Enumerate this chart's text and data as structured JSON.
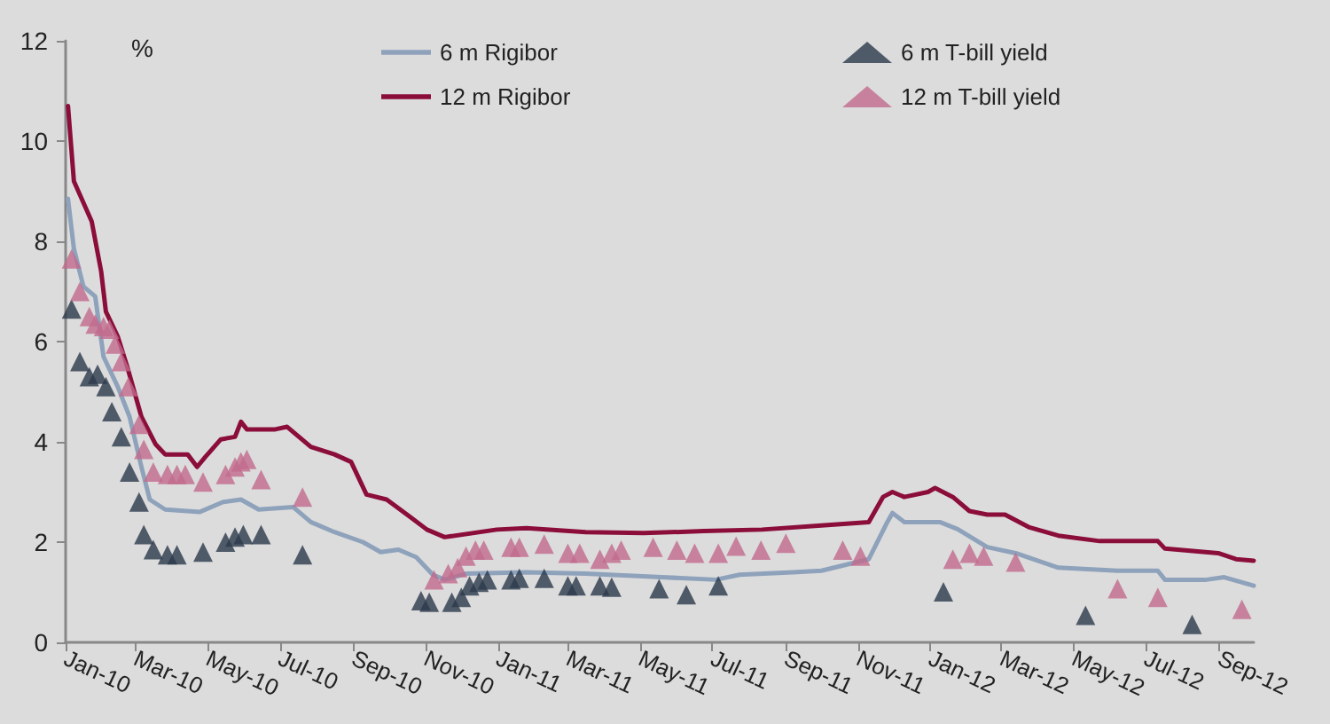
{
  "chart_data": {
    "type": "line",
    "ylabel": "%",
    "ylim": [
      0,
      12
    ],
    "yticks": [
      0,
      2,
      4,
      6,
      8,
      10,
      12
    ],
    "xlim": [
      "2010-01-01",
      "2012-09-30"
    ],
    "xticks": [
      {
        "value": "2010-01-01",
        "label": "Jan-10"
      },
      {
        "value": "2010-03-01",
        "label": "Mar-10"
      },
      {
        "value": "2010-05-01",
        "label": "May-10"
      },
      {
        "value": "2010-07-01",
        "label": "Jul-10"
      },
      {
        "value": "2010-09-01",
        "label": "Sep-10"
      },
      {
        "value": "2010-11-01",
        "label": "Nov-10"
      },
      {
        "value": "2011-01-01",
        "label": "Jan-11"
      },
      {
        "value": "2011-03-01",
        "label": "Mar-11"
      },
      {
        "value": "2011-05-01",
        "label": "May-11"
      },
      {
        "value": "2011-07-01",
        "label": "Jul-11"
      },
      {
        "value": "2011-09-01",
        "label": "Sep-11"
      },
      {
        "value": "2011-11-01",
        "label": "Nov-11"
      },
      {
        "value": "2012-01-01",
        "label": "Jan-12"
      },
      {
        "value": "2012-03-01",
        "label": "Mar-12"
      },
      {
        "value": "2012-05-01",
        "label": "May-12"
      },
      {
        "value": "2012-07-01",
        "label": "Jul-12"
      },
      {
        "value": "2012-09-01",
        "label": "Sep-12"
      }
    ],
    "grid": false,
    "legend": "top",
    "series": [
      {
        "name": "6 m Rigibor",
        "marker": "none",
        "color": "#8ea2bb",
        "x": [
          "2010-01-03",
          "2010-01-08",
          "2010-01-16",
          "2010-01-26",
          "2010-02-02",
          "2010-02-14",
          "2010-02-24",
          "2010-03-06",
          "2010-03-13",
          "2010-03-26",
          "2010-04-24",
          "2010-05-14",
          "2010-05-29",
          "2010-06-13",
          "2010-07-12",
          "2010-07-27",
          "2010-08-16",
          "2010-09-09",
          "2010-09-24",
          "2010-10-09",
          "2010-10-24",
          "2010-11-07",
          "2010-11-17",
          "2010-12-05",
          "2011-01-25",
          "2011-03-16",
          "2011-05-19",
          "2011-07-04",
          "2011-07-24",
          "2011-09-07",
          "2011-10-01",
          "2011-11-10",
          "2011-11-25",
          "2011-11-30",
          "2011-12-10",
          "2012-01-09",
          "2012-01-24",
          "2012-02-18",
          "2012-03-13",
          "2012-04-18",
          "2012-06-07",
          "2012-07-11",
          "2012-07-17",
          "2012-08-21",
          "2012-09-05",
          "2012-09-30"
        ],
        "values": [
          8.85,
          7.85,
          7.1,
          6.9,
          5.7,
          5.1,
          4.5,
          3.5,
          2.85,
          2.65,
          2.6,
          2.8,
          2.85,
          2.65,
          2.7,
          2.4,
          2.2,
          2.0,
          1.8,
          1.85,
          1.7,
          1.35,
          1.25,
          1.37,
          1.4,
          1.37,
          1.3,
          1.25,
          1.35,
          1.4,
          1.43,
          1.66,
          2.37,
          2.58,
          2.4,
          2.4,
          2.26,
          1.9,
          1.78,
          1.49,
          1.43,
          1.43,
          1.25,
          1.25,
          1.3,
          1.13
        ]
      },
      {
        "name": "12 m Rigibor",
        "marker": "none",
        "color": "#8b0d3a",
        "x": [
          "2010-01-03",
          "2010-01-08",
          "2010-01-23",
          "2010-01-31",
          "2010-02-04",
          "2010-02-14",
          "2010-02-22",
          "2010-03-06",
          "2010-03-18",
          "2010-03-26",
          "2010-04-14",
          "2010-04-22",
          "2010-04-29",
          "2010-05-12",
          "2010-05-24",
          "2010-05-29",
          "2010-06-03",
          "2010-06-27",
          "2010-07-07",
          "2010-07-27",
          "2010-08-16",
          "2010-08-30",
          "2010-09-12",
          "2010-09-29",
          "2010-10-19",
          "2010-11-02",
          "2010-11-17",
          "2010-12-31",
          "2011-01-25",
          "2011-03-16",
          "2011-05-04",
          "2011-06-24",
          "2011-08-12",
          "2011-10-01",
          "2011-11-10",
          "2011-11-22",
          "2011-11-30",
          "2011-12-10",
          "2011-12-30",
          "2012-01-05",
          "2012-01-20",
          "2012-02-03",
          "2012-02-18",
          "2012-03-04",
          "2012-03-24",
          "2012-04-18",
          "2012-05-23",
          "2012-07-11",
          "2012-07-17",
          "2012-08-31",
          "2012-09-15",
          "2012-09-30"
        ],
        "values": [
          10.7,
          9.2,
          8.4,
          7.4,
          6.6,
          6.1,
          5.5,
          4.5,
          3.95,
          3.75,
          3.75,
          3.5,
          3.7,
          4.05,
          4.1,
          4.4,
          4.25,
          4.25,
          4.3,
          3.9,
          3.75,
          3.6,
          2.95,
          2.85,
          2.5,
          2.25,
          2.1,
          2.25,
          2.28,
          2.2,
          2.18,
          2.22,
          2.25,
          2.33,
          2.4,
          2.9,
          3.0,
          2.9,
          3.0,
          3.08,
          2.9,
          2.62,
          2.55,
          2.55,
          2.3,
          2.13,
          2.02,
          2.02,
          1.87,
          1.78,
          1.66,
          1.63
        ]
      },
      {
        "name": "6 m T-bill yield",
        "type": "scatter",
        "marker": "triangle",
        "color": "#2c3a4b",
        "x": [
          "2010-01-06",
          "2010-01-13",
          "2010-01-21",
          "2010-01-28",
          "2010-02-04",
          "2010-02-09",
          "2010-02-17",
          "2010-02-24",
          "2010-03-04",
          "2010-03-08",
          "2010-03-16",
          "2010-03-28",
          "2010-04-05",
          "2010-04-27",
          "2010-05-16",
          "2010-05-24",
          "2010-05-31",
          "2010-06-15",
          "2010-07-20",
          "2010-10-28",
          "2010-11-04",
          "2010-11-23",
          "2010-12-01",
          "2010-12-08",
          "2010-12-16",
          "2010-12-23",
          "2011-01-12",
          "2011-01-19",
          "2011-02-09",
          "2011-03-01",
          "2011-03-08",
          "2011-03-28",
          "2011-04-07",
          "2011-05-17",
          "2011-06-09",
          "2011-07-06",
          "2012-01-12",
          "2012-05-11",
          "2012-08-09"
        ],
        "values": [
          6.65,
          5.6,
          5.3,
          5.35,
          5.1,
          4.6,
          4.1,
          3.4,
          2.8,
          2.15,
          1.85,
          1.75,
          1.75,
          1.8,
          2.0,
          2.1,
          2.15,
          2.15,
          1.75,
          0.83,
          0.8,
          0.8,
          0.9,
          1.13,
          1.2,
          1.25,
          1.25,
          1.28,
          1.28,
          1.13,
          1.13,
          1.13,
          1.1,
          1.07,
          0.95,
          1.13,
          1.01,
          0.54,
          0.36
        ]
      },
      {
        "name": "12 m T-bill yield",
        "type": "scatter",
        "marker": "triangle",
        "color": "#c26a8d",
        "x": [
          "2010-01-06",
          "2010-01-13",
          "2010-01-21",
          "2010-01-26",
          "2010-02-02",
          "2010-02-07",
          "2010-02-12",
          "2010-02-17",
          "2010-02-23",
          "2010-03-04",
          "2010-03-08",
          "2010-03-16",
          "2010-03-28",
          "2010-04-05",
          "2010-04-12",
          "2010-04-27",
          "2010-05-16",
          "2010-05-24",
          "2010-05-29",
          "2010-06-03",
          "2010-06-15",
          "2010-07-20",
          "2010-11-08",
          "2010-11-20",
          "2010-11-28",
          "2010-12-05",
          "2010-12-13",
          "2010-12-20",
          "2011-01-12",
          "2011-01-19",
          "2011-02-09",
          "2011-03-01",
          "2011-03-11",
          "2011-03-28",
          "2011-04-07",
          "2011-04-15",
          "2011-05-12",
          "2011-06-01",
          "2011-06-16",
          "2011-07-06",
          "2011-07-21",
          "2011-08-11",
          "2011-09-01",
          "2011-10-19",
          "2011-11-03",
          "2012-01-20",
          "2012-02-03",
          "2012-02-15",
          "2012-03-13",
          "2012-06-07",
          "2012-07-11",
          "2012-09-20"
        ],
        "values": [
          7.65,
          7.0,
          6.5,
          6.35,
          6.3,
          6.25,
          5.95,
          5.6,
          5.1,
          4.35,
          3.85,
          3.4,
          3.35,
          3.35,
          3.35,
          3.2,
          3.35,
          3.5,
          3.6,
          3.65,
          3.25,
          2.9,
          1.25,
          1.37,
          1.49,
          1.72,
          1.84,
          1.84,
          1.9,
          1.9,
          1.96,
          1.78,
          1.78,
          1.66,
          1.78,
          1.84,
          1.9,
          1.84,
          1.78,
          1.78,
          1.92,
          1.84,
          1.98,
          1.84,
          1.72,
          1.66,
          1.78,
          1.72,
          1.6,
          1.07,
          0.9,
          0.66
        ]
      }
    ]
  }
}
